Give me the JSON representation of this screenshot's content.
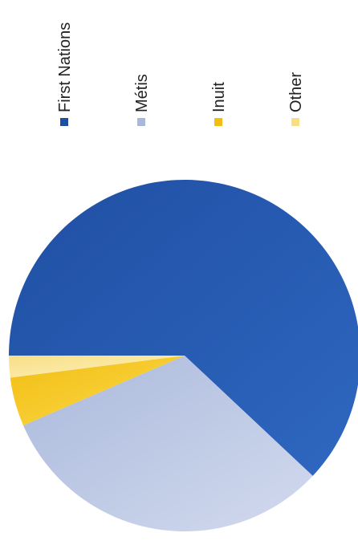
{
  "chart_data": {
    "type": "pie",
    "orientation": "rotated 90 degrees counter-clockwise",
    "title": "",
    "legend": {
      "placement": "top",
      "entries": [
        "First Nations",
        "Métis",
        "Inuit",
        "Other"
      ]
    },
    "slices": [
      {
        "label": "First Nations",
        "value": 62.0,
        "color": "#1f4fa3",
        "color_light": "#2f67c0"
      },
      {
        "label": "Métis",
        "value": 31.5,
        "color": "#aab9db",
        "color_light": "#d2daee"
      },
      {
        "label": "Inuit",
        "value": 4.5,
        "color": "#f2be12",
        "color_light": "#fbd94c"
      },
      {
        "label": "Other",
        "value": 2.0,
        "color": "#f8df86",
        "color_light": "#fdf0bf"
      }
    ]
  }
}
